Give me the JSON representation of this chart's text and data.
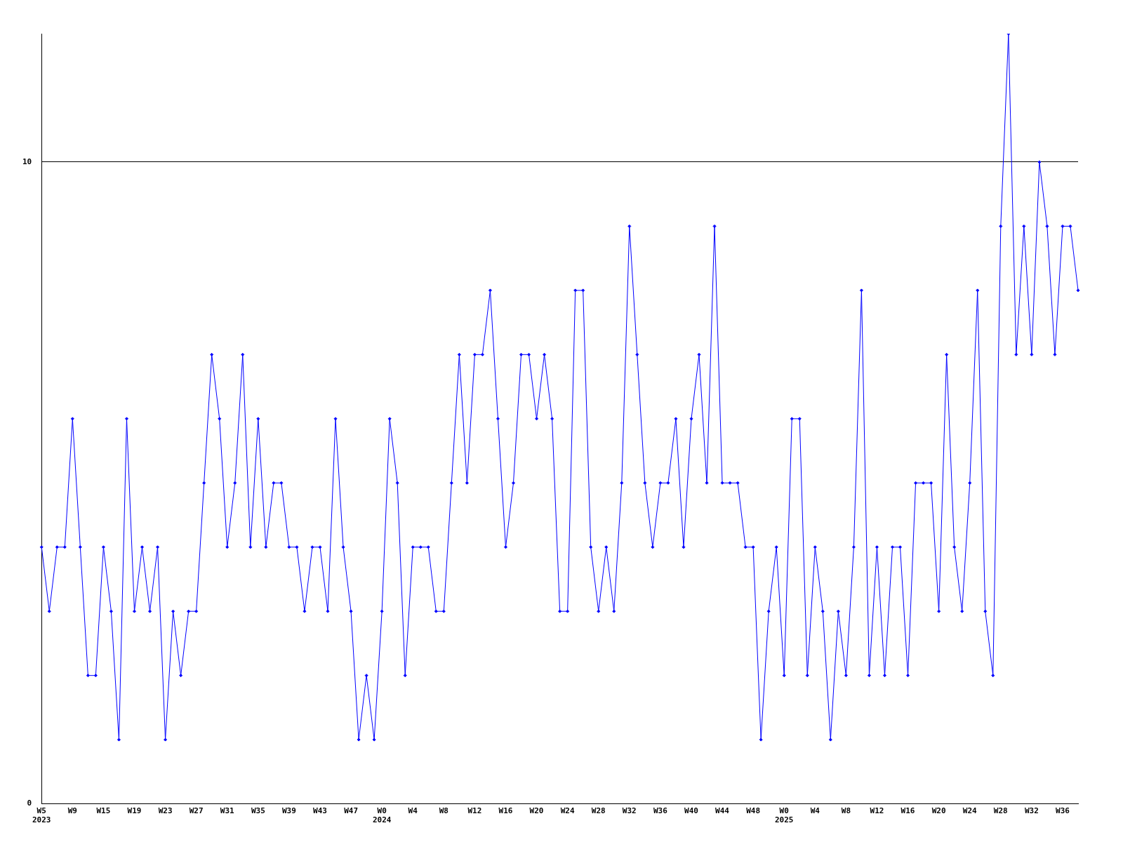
{
  "chart_data": {
    "type": "line",
    "categories": [
      "W5\n2023",
      null,
      null,
      null,
      "W9",
      null,
      null,
      null,
      "W15",
      null,
      null,
      null,
      "W19",
      null,
      null,
      null,
      "W23",
      null,
      null,
      null,
      "W27",
      null,
      null,
      null,
      "W31",
      null,
      null,
      null,
      "W35",
      null,
      null,
      null,
      "W39",
      null,
      null,
      null,
      "W43",
      null,
      null,
      null,
      "W47",
      null,
      null,
      null,
      "W0\n2024",
      null,
      null,
      null,
      "W4",
      null,
      null,
      null,
      "W8",
      null,
      null,
      null,
      "W12",
      null,
      null,
      null,
      "W16",
      null,
      null,
      null,
      "W20",
      null,
      null,
      null,
      "W24",
      null,
      null,
      null,
      "W28",
      null,
      null,
      null,
      "W32",
      null,
      null,
      null,
      "W36",
      null,
      null,
      null,
      "W40",
      null,
      null,
      null,
      "W44",
      null,
      null,
      null,
      "W48",
      null,
      null,
      null,
      "W0\n2025",
      null,
      null,
      null,
      "W4",
      null,
      null,
      null,
      "W8",
      null,
      null,
      null,
      "W12",
      null,
      null,
      null,
      "W16",
      null,
      null,
      null,
      "W20",
      null,
      null,
      null,
      "W24",
      null,
      null,
      null,
      "W28",
      null,
      null,
      null,
      "W32",
      null,
      null,
      null,
      "W36",
      null,
      null
    ],
    "series": [
      {
        "color": "#0000ff",
        "values": [
          4,
          3,
          4,
          4,
          6,
          4,
          2,
          2,
          4,
          3,
          1,
          6,
          3,
          4,
          3,
          4,
          1,
          3,
          2,
          3,
          3,
          5,
          7,
          6,
          4,
          5,
          7,
          4,
          6,
          4,
          5,
          5,
          4,
          4,
          3,
          4,
          4,
          3,
          6,
          4,
          3,
          1,
          2,
          1,
          3,
          6,
          5,
          2,
          4,
          4,
          4,
          3,
          3,
          5,
          7,
          5,
          7,
          7,
          8,
          6,
          4,
          5,
          7,
          7,
          6,
          7,
          6,
          3,
          3,
          8,
          8,
          4,
          3,
          4,
          3,
          5,
          9,
          7,
          5,
          4,
          5,
          5,
          6,
          4,
          6,
          7,
          5,
          9,
          5,
          5,
          5,
          4,
          4,
          1,
          3,
          4,
          2,
          6,
          6,
          2,
          4,
          3,
          1,
          3,
          2,
          4,
          8,
          2,
          4,
          2,
          4,
          4,
          2,
          5,
          5,
          5,
          3,
          7,
          4,
          3,
          5,
          8,
          3,
          2,
          9,
          12,
          7,
          9,
          7,
          10,
          9,
          7,
          9,
          9,
          8
        ]
      }
    ],
    "ylim": [
      0,
      12
    ],
    "yticks": [
      0,
      10
    ],
    "grid": "y",
    "marker": "diamond",
    "line_style": "solid",
    "legend": false
  }
}
